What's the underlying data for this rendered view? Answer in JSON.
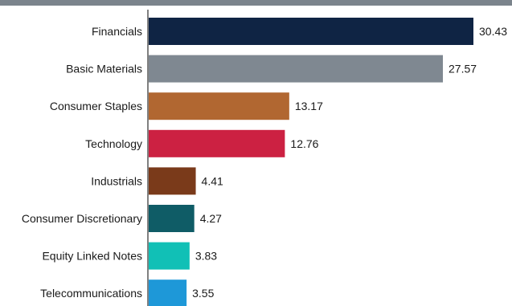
{
  "chart_data": {
    "type": "bar",
    "orientation": "horizontal",
    "categories": [
      "Financials",
      "Basic Materials",
      "Consumer Staples",
      "Technology",
      "Industrials",
      "Consumer Discretionary",
      "Equity Linked Notes",
      "Telecommunications"
    ],
    "values": [
      30.43,
      27.57,
      13.17,
      12.76,
      4.41,
      4.27,
      3.83,
      3.55
    ],
    "data_labels": [
      "30.43",
      "27.57",
      "13.17",
      "12.76",
      "4.41",
      "4.27",
      "3.83",
      "3.55"
    ],
    "colors": [
      "#0f2444",
      "#7f8891",
      "#b16731",
      "#cc2142",
      "#7a3a1a",
      "#0f5c66",
      "#11c0b6",
      "#1e98d8"
    ],
    "xlim": [
      0,
      30.43
    ],
    "grid": false,
    "legend": "none",
    "title": "",
    "xlabel": "",
    "ylabel": ""
  }
}
